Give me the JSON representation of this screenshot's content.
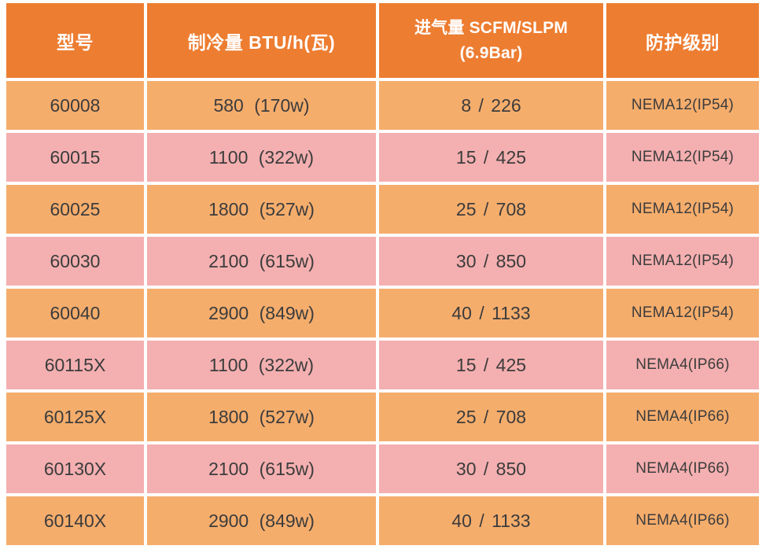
{
  "colors": {
    "header_bg": "#ED7D31",
    "row_orange": "#F5AD6C",
    "row_pink": "#F4AFB0",
    "text_dark": "#3C3C3C",
    "header_text": "#FFFFFF",
    "grid_line": "#FFFFFF"
  },
  "table": {
    "headers": [
      {
        "label": "型号"
      },
      {
        "label": "制冷量 BTU/h(瓦)"
      },
      {
        "line1": "进气量 SCFM/SLPM",
        "line2": "(6.9Bar)"
      },
      {
        "label": "防护级别"
      }
    ],
    "rows": [
      {
        "model": "60008",
        "cooling": "580 (170w)",
        "airflow": "8 / 226",
        "protection": "NEMA12(IP54)"
      },
      {
        "model": "60015",
        "cooling": "1100 (322w)",
        "airflow": "15 / 425",
        "protection": "NEMA12(IP54)"
      },
      {
        "model": "60025",
        "cooling": "1800 (527w)",
        "airflow": "25 / 708",
        "protection": "NEMA12(IP54)"
      },
      {
        "model": "60030",
        "cooling": "2100 (615w)",
        "airflow": "30 / 850",
        "protection": "NEMA12(IP54)"
      },
      {
        "model": "60040",
        "cooling": "2900 (849w)",
        "airflow": "40 / 1133",
        "protection": "NEMA12(IP54)"
      },
      {
        "model": "60115X",
        "cooling": "1100 (322w)",
        "airflow": "15 / 425",
        "protection": "NEMA4(IP66)"
      },
      {
        "model": "60125X",
        "cooling": "1800 (527w)",
        "airflow": "25 / 708",
        "protection": "NEMA4(IP66)"
      },
      {
        "model": "60130X",
        "cooling": "2100 (615w)",
        "airflow": "30 / 850",
        "protection": "NEMA4(IP66)"
      },
      {
        "model": "60140X",
        "cooling": "2900 (849w)",
        "airflow": "40 / 1133",
        "protection": "NEMA4(IP66)"
      }
    ]
  }
}
